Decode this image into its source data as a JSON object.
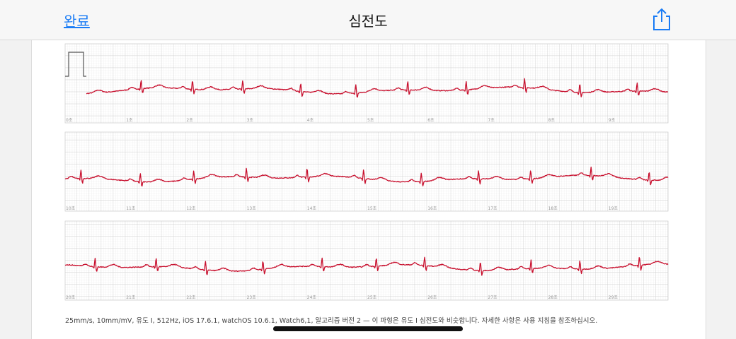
{
  "header": {
    "done": "완료",
    "title": "심전도"
  },
  "strips": [
    {
      "labels": [
        "0초",
        "1초",
        "2초",
        "3초",
        "4초",
        "5초",
        "6초",
        "7초",
        "8초",
        "9초"
      ]
    },
    {
      "labels": [
        "10초",
        "11초",
        "12초",
        "13초",
        "14초",
        "15초",
        "16초",
        "17초",
        "18초",
        "19초"
      ]
    },
    {
      "labels": [
        "20초",
        "21초",
        "22초",
        "23초",
        "24초",
        "25초",
        "26초",
        "27초",
        "28초",
        "29초"
      ]
    }
  ],
  "footer": "25mm/s, 10mm/mV, 유도 I, 512Hz, iOS 17.6.1, watchOS 10.6.1, Watch6,1, 알고리즘 버전 2 — 이 파형은 유도 I 심전도와 비슷합니다. 자세한 사항은 사용 지침을 참조하십시오."
}
